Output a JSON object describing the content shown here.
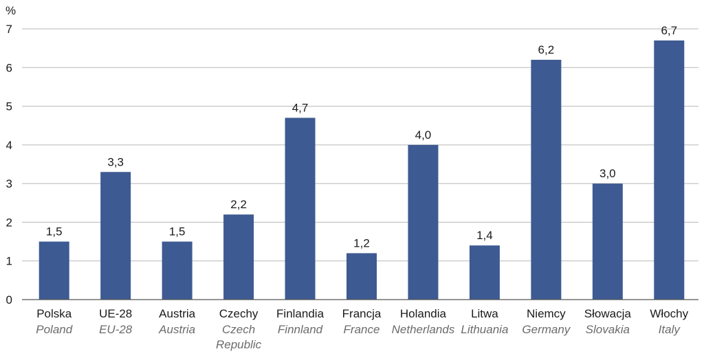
{
  "chart_data": {
    "type": "bar",
    "unit_label": "%",
    "ylim": [
      0,
      7
    ],
    "yticks": [
      "0",
      "1",
      "2",
      "3",
      "4",
      "5",
      "6",
      "7"
    ],
    "grid": true,
    "bar_color": "#3d5a92",
    "categories": [
      {
        "label_pl": "Polska",
        "label_en": [
          "Poland"
        ]
      },
      {
        "label_pl": "UE-28",
        "label_en": [
          "EU-28"
        ]
      },
      {
        "label_pl": "Austria",
        "label_en": [
          "Austria"
        ]
      },
      {
        "label_pl": "Czechy",
        "label_en": [
          "Czech",
          "Republic"
        ]
      },
      {
        "label_pl": "Finlandia",
        "label_en": [
          "Finnland"
        ]
      },
      {
        "label_pl": "Francja",
        "label_en": [
          "France"
        ]
      },
      {
        "label_pl": "Holandia",
        "label_en": [
          "Netherlands"
        ]
      },
      {
        "label_pl": "Litwa",
        "label_en": [
          "Lithuania"
        ]
      },
      {
        "label_pl": "Niemcy",
        "label_en": [
          "Germany"
        ]
      },
      {
        "label_pl": "Słowacja",
        "label_en": [
          "Slovakia"
        ]
      },
      {
        "label_pl": "Włochy",
        "label_en": [
          "Italy"
        ]
      }
    ],
    "values": [
      1.5,
      3.3,
      1.5,
      2.2,
      4.7,
      1.2,
      4.0,
      1.4,
      6.2,
      3.0,
      6.7
    ],
    "value_labels": [
      "1,5",
      "3,3",
      "1,5",
      "2,2",
      "4,7",
      "1,2",
      "4,0",
      "1,4",
      "6,2",
      "3,0",
      "6,7"
    ]
  }
}
